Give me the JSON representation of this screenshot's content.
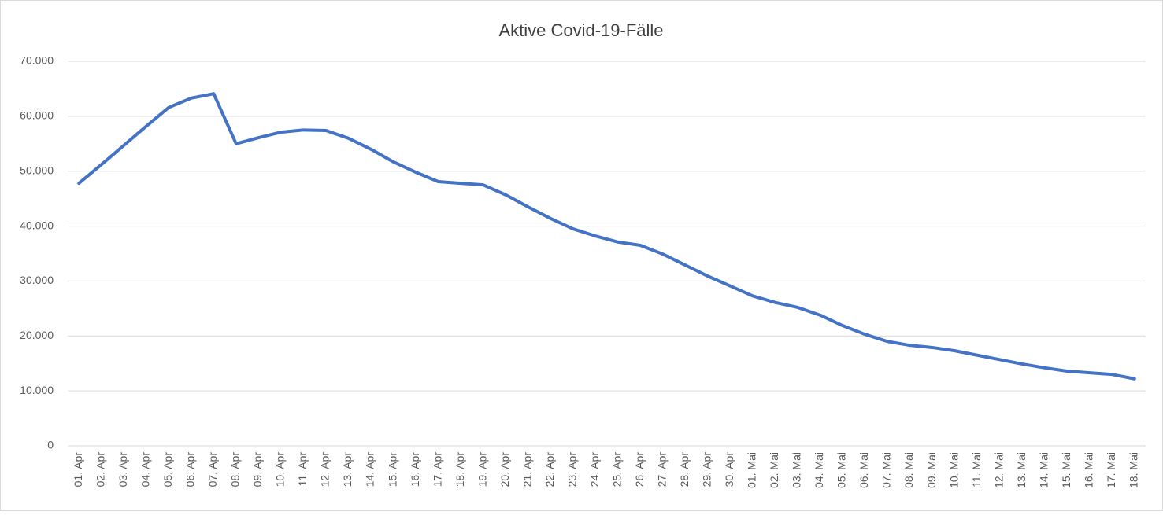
{
  "chart_data": {
    "type": "line",
    "title": "Aktive Covid-19-Fälle",
    "categories": [
      "01. Apr",
      "02. Apr",
      "03. Apr",
      "04. Apr",
      "05. Apr",
      "06. Apr",
      "07. Apr",
      "08. Apr",
      "09. Apr",
      "10. Apr",
      "11. Apr",
      "12. Apr",
      "13. Apr",
      "14. Apr",
      "15. Apr",
      "16. Apr",
      "17. Apr",
      "18. Apr",
      "19. Apr",
      "20. Apr",
      "21. Apr",
      "22. Apr",
      "23. Apr",
      "24. Apr",
      "25. Apr",
      "26. Apr",
      "27. Apr",
      "28. Apr",
      "29. Apr",
      "30. Apr",
      "01. Mai",
      "02. Mai",
      "03. Mai",
      "04. Mai",
      "05. Mai",
      "06. Mai",
      "07. Mai",
      "08. Mai",
      "09. Mai",
      "10. Mai",
      "11. Mai",
      "12. Mai",
      "13. Mai",
      "14. Mai",
      "15. Mai",
      "16. Mai",
      "17. Mai",
      "18. Mai"
    ],
    "series": [
      {
        "color": "#4472c4",
        "values": [
          47800,
          51200,
          54700,
          58200,
          61600,
          63300,
          64100,
          55000,
          56100,
          57100,
          57500,
          57400,
          56000,
          54000,
          51700,
          49800,
          48100,
          47800,
          47500,
          45700,
          43500,
          41400,
          39500,
          38200,
          37100,
          36500,
          34900,
          32900,
          30900,
          29100,
          27300,
          26100,
          25200,
          23800,
          21900,
          20300,
          19000,
          18300,
          17900,
          17300,
          16500,
          15700,
          14900,
          14200,
          13600,
          13300,
          13000,
          12200
        ]
      }
    ],
    "ylim": [
      0,
      70000
    ],
    "yticks": [
      0,
      {
        "value": 10000,
        "label": "10.000"
      },
      {
        "value": 20000,
        "label": "20.000"
      },
      {
        "value": 30000,
        "label": "30.000"
      },
      {
        "value": 40000,
        "label": "40.000"
      },
      {
        "value": 50000,
        "label": "50.000"
      },
      {
        "value": 60000,
        "label": "60.000"
      },
      {
        "value": 70000,
        "label": "70.000"
      }
    ],
    "grid": true
  }
}
